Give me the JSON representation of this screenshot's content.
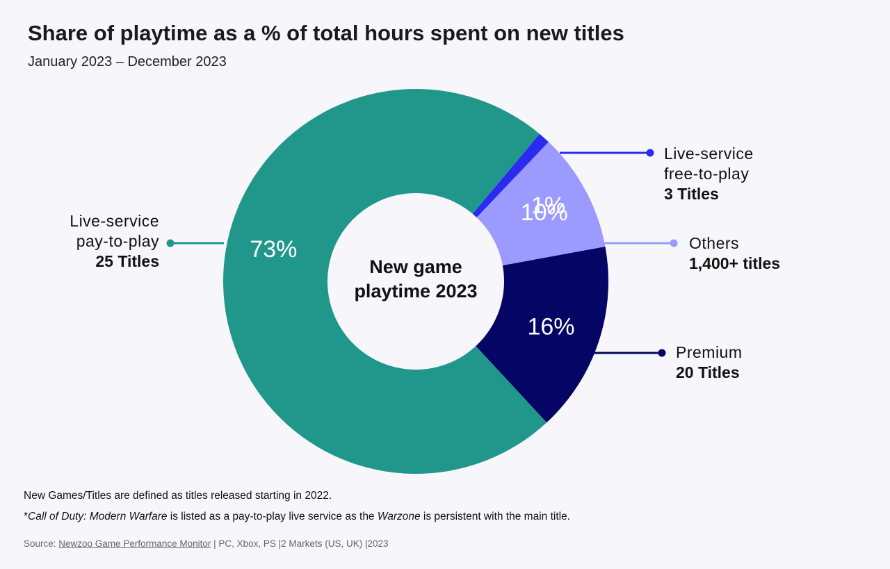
{
  "title": "Share of playtime as a % of total hours spent on new titles",
  "subtitle": "January 2023 – December 2023",
  "chart_data": {
    "type": "pie",
    "title": "Share of playtime as a % of total hours spent on new titles",
    "subtitle": "January 2023 – December 2023",
    "center_label_line1": "New game",
    "center_label_line2": "playtime 2023",
    "slices": [
      {
        "name_line1": "Live-service",
        "name_line2": "free-to-play",
        "titles": "3 Titles",
        "value": 1,
        "label": "1%",
        "color": "#2b2bf0"
      },
      {
        "name_line1": "Others",
        "name_line2": "",
        "titles": "1,400+ titles",
        "value": 10,
        "label": "10%",
        "color": "#9b9bff"
      },
      {
        "name_line1": "Premium",
        "name_line2": "",
        "titles": "20 Titles",
        "value": 16,
        "label": "16%",
        "color": "#050565"
      },
      {
        "name_line1": "Live-service",
        "name_line2": "pay-to-play",
        "titles": "25 Titles",
        "value": 73,
        "label": "73%",
        "color": "#21978b"
      }
    ]
  },
  "footnotes": {
    "line1": "New Games/Titles are defined as titles released starting in 2022.",
    "line2_star": "*",
    "line2_italic1": "Call of Duty: Modern Warfare",
    "line2_mid": " is listed as a pay-to-play live service as the ",
    "line2_italic2": "Warzone",
    "line2_end": " is persistent with the main title."
  },
  "source": {
    "prefix": "Source: ",
    "link": "Newzoo Game Performance Monitor",
    "suffix": " | PC, Xbox, PS |2 Markets (US, UK) |2023"
  }
}
